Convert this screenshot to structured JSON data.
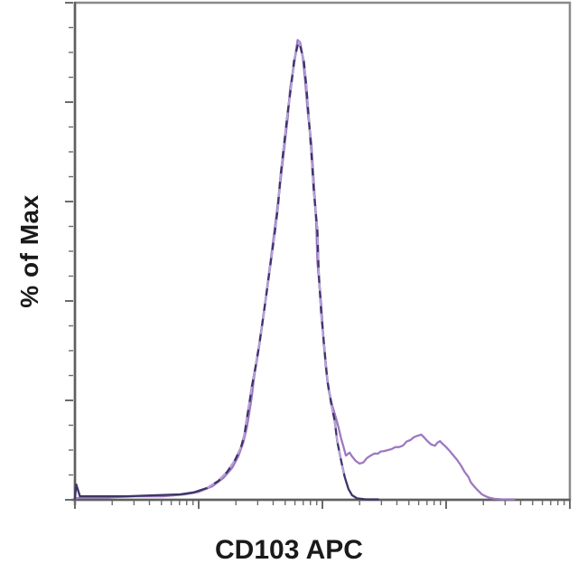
{
  "figure": {
    "title": "",
    "y_axis_label": "% of Max",
    "x_axis_label": "CD103 APC"
  },
  "colors": {
    "frame": "#8a8a8a",
    "axis": "#5f5f5f",
    "tick": "#6b6b6b",
    "trace_dark_violet": "#3c3568",
    "trace_light_violet": "#9e79c1",
    "braid_highlight": "#b9a0dc",
    "label_text": "#1a1a1a",
    "background": "#ffffff"
  },
  "chart_data": {
    "type": "line",
    "subtype": "flow-cytometry-histogram-overlay",
    "title": "",
    "xlabel": "CD103 APC",
    "ylabel": "% of Max",
    "x_scale": "log10",
    "xlim_decades": [
      0,
      4
    ],
    "ylim": [
      0,
      100
    ],
    "y_major_step": 20,
    "y_minor_step": 5,
    "grid": false,
    "legend_position": "none",
    "axis_tick_labels_visible": false,
    "series": [
      {
        "name": "trace-dark-violet",
        "color": "#3c3568",
        "description": "dark blue-violet histogram, single peak near decade 1.8, returns to baseline by decade 2.3",
        "points": [
          [
            0.0,
            0.2
          ],
          [
            0.01,
            3.1
          ],
          [
            0.04,
            0.7
          ],
          [
            0.2,
            0.7
          ],
          [
            0.42,
            0.7
          ],
          [
            0.64,
            0.9
          ],
          [
            0.85,
            1.1
          ],
          [
            0.96,
            1.5
          ],
          [
            1.07,
            2.4
          ],
          [
            1.16,
            3.8
          ],
          [
            1.23,
            5.6
          ],
          [
            1.29,
            7.8
          ],
          [
            1.34,
            10.4
          ],
          [
            1.37,
            13.1
          ],
          [
            1.39,
            16.4
          ],
          [
            1.41,
            19.5
          ],
          [
            1.43,
            22.8
          ],
          [
            1.46,
            26.8
          ],
          [
            1.49,
            31.3
          ],
          [
            1.52,
            36.4
          ],
          [
            1.55,
            41.9
          ],
          [
            1.58,
            47.4
          ],
          [
            1.61,
            52.8
          ],
          [
            1.64,
            58.7
          ],
          [
            1.66,
            64.8
          ],
          [
            1.69,
            71.4
          ],
          [
            1.72,
            78.0
          ],
          [
            1.75,
            83.8
          ],
          [
            1.77,
            88.2
          ],
          [
            1.8,
            91.4
          ],
          [
            1.81,
            92.2
          ],
          [
            1.82,
            91.4
          ],
          [
            1.85,
            88.2
          ],
          [
            1.87,
            83.2
          ],
          [
            1.89,
            76.9
          ],
          [
            1.91,
            69.9
          ],
          [
            1.93,
            62.3
          ],
          [
            1.96,
            54.1
          ],
          [
            1.97,
            45.9
          ],
          [
            1.99,
            37.7
          ],
          [
            2.02,
            29.5
          ],
          [
            2.04,
            24.0
          ],
          [
            2.07,
            19.5
          ],
          [
            2.1,
            15.8
          ],
          [
            2.12,
            11.8
          ],
          [
            2.15,
            8.0
          ],
          [
            2.18,
            4.6
          ],
          [
            2.21,
            2.2
          ],
          [
            2.24,
            0.9
          ],
          [
            2.28,
            0.3
          ],
          [
            2.35,
            0.1
          ],
          [
            2.45,
            0.1
          ]
        ]
      },
      {
        "name": "trace-light-violet",
        "color": "#9e79c1",
        "description": "light violet histogram, main peak near decade 1.8 plus broad secondary bump around decades 2.5-3.1",
        "points": [
          [
            0.0,
            0.2
          ],
          [
            0.05,
            0.5
          ],
          [
            0.27,
            0.5
          ],
          [
            0.49,
            0.7
          ],
          [
            0.71,
            0.7
          ],
          [
            0.89,
            1.1
          ],
          [
            1.0,
            1.6
          ],
          [
            1.11,
            2.7
          ],
          [
            1.2,
            4.4
          ],
          [
            1.27,
            6.4
          ],
          [
            1.32,
            8.7
          ],
          [
            1.36,
            11.5
          ],
          [
            1.39,
            14.6
          ],
          [
            1.41,
            17.7
          ],
          [
            1.43,
            20.9
          ],
          [
            1.45,
            25.0
          ],
          [
            1.48,
            29.5
          ],
          [
            1.51,
            34.6
          ],
          [
            1.54,
            40.1
          ],
          [
            1.57,
            45.9
          ],
          [
            1.6,
            51.7
          ],
          [
            1.63,
            57.6
          ],
          [
            1.66,
            63.8
          ],
          [
            1.69,
            70.3
          ],
          [
            1.72,
            76.9
          ],
          [
            1.74,
            82.9
          ],
          [
            1.77,
            87.4
          ],
          [
            1.79,
            90.9
          ],
          [
            1.8,
            92.5
          ],
          [
            1.82,
            92.0
          ],
          [
            1.84,
            89.3
          ],
          [
            1.86,
            84.5
          ],
          [
            1.88,
            78.3
          ],
          [
            1.91,
            71.8
          ],
          [
            1.93,
            64.1
          ],
          [
            1.95,
            55.9
          ],
          [
            1.96,
            47.7
          ],
          [
            1.99,
            39.5
          ],
          [
            2.01,
            31.7
          ],
          [
            2.03,
            26.2
          ],
          [
            2.05,
            22.2
          ],
          [
            2.08,
            18.9
          ],
          [
            2.11,
            16.4
          ],
          [
            2.13,
            14.6
          ],
          [
            2.15,
            12.4
          ],
          [
            2.17,
            10.7
          ],
          [
            2.19,
            8.9
          ],
          [
            2.22,
            9.5
          ],
          [
            2.24,
            8.7
          ],
          [
            2.27,
            7.8
          ],
          [
            2.3,
            7.3
          ],
          [
            2.33,
            7.5
          ],
          [
            2.36,
            8.4
          ],
          [
            2.39,
            8.9
          ],
          [
            2.42,
            9.3
          ],
          [
            2.45,
            9.3
          ],
          [
            2.47,
            9.7
          ],
          [
            2.5,
            9.8
          ],
          [
            2.53,
            10.0
          ],
          [
            2.56,
            10.2
          ],
          [
            2.59,
            10.6
          ],
          [
            2.62,
            10.6
          ],
          [
            2.65,
            10.9
          ],
          [
            2.68,
            11.7
          ],
          [
            2.71,
            12.0
          ],
          [
            2.74,
            12.6
          ],
          [
            2.77,
            12.9
          ],
          [
            2.8,
            13.1
          ],
          [
            2.82,
            12.6
          ],
          [
            2.85,
            11.8
          ],
          [
            2.88,
            11.1
          ],
          [
            2.91,
            10.9
          ],
          [
            2.93,
            11.5
          ],
          [
            2.95,
            11.8
          ],
          [
            2.97,
            11.3
          ],
          [
            3.0,
            10.6
          ],
          [
            3.03,
            9.8
          ],
          [
            3.06,
            8.9
          ],
          [
            3.09,
            8.0
          ],
          [
            3.12,
            6.9
          ],
          [
            3.15,
            5.6
          ],
          [
            3.18,
            4.6
          ],
          [
            3.2,
            3.5
          ],
          [
            3.23,
            2.6
          ],
          [
            3.26,
            1.8
          ],
          [
            3.29,
            1.1
          ],
          [
            3.32,
            0.7
          ],
          [
            3.35,
            0.4
          ],
          [
            3.39,
            0.2
          ],
          [
            3.45,
            0.1
          ],
          [
            3.55,
            0.1
          ]
        ]
      }
    ]
  }
}
